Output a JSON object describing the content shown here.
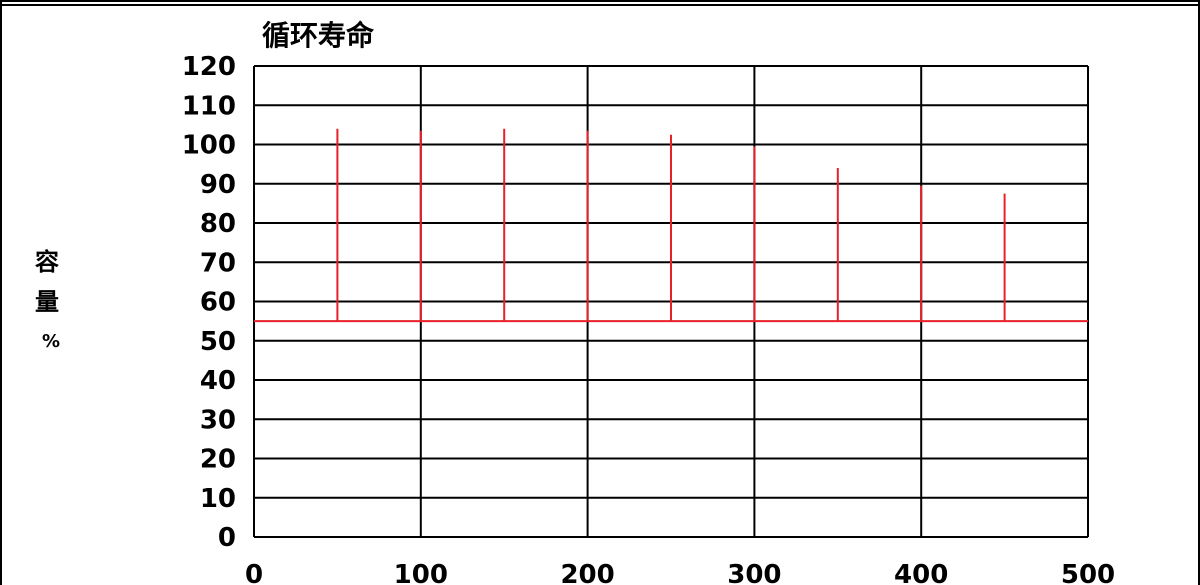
{
  "chart_data": {
    "type": "line",
    "title": "循环寿命",
    "ylabel_chars": [
      "容",
      "量"
    ],
    "yunit": "%",
    "xlim": [
      0,
      500
    ],
    "ylim": [
      0,
      120
    ],
    "x_ticks": [
      "0",
      "100",
      "200",
      "300",
      "400",
      "500"
    ],
    "y_ticks": [
      "0",
      "10",
      "20",
      "30",
      "40",
      "50",
      "60",
      "70",
      "80",
      "90",
      "100",
      "110",
      "120"
    ],
    "grid": true,
    "baseline": 55,
    "series": [
      {
        "color": "#e8202a",
        "points": [
          {
            "x": 50,
            "y": 104
          },
          {
            "x": 100,
            "y": 103.5
          },
          {
            "x": 150,
            "y": 104
          },
          {
            "x": 200,
            "y": 103.5
          },
          {
            "x": 250,
            "y": 102.5
          },
          {
            "x": 300,
            "y": 99.5
          },
          {
            "x": 350,
            "y": 94
          },
          {
            "x": 400,
            "y": 89.5
          },
          {
            "x": 450,
            "y": 87.5
          }
        ]
      }
    ]
  }
}
